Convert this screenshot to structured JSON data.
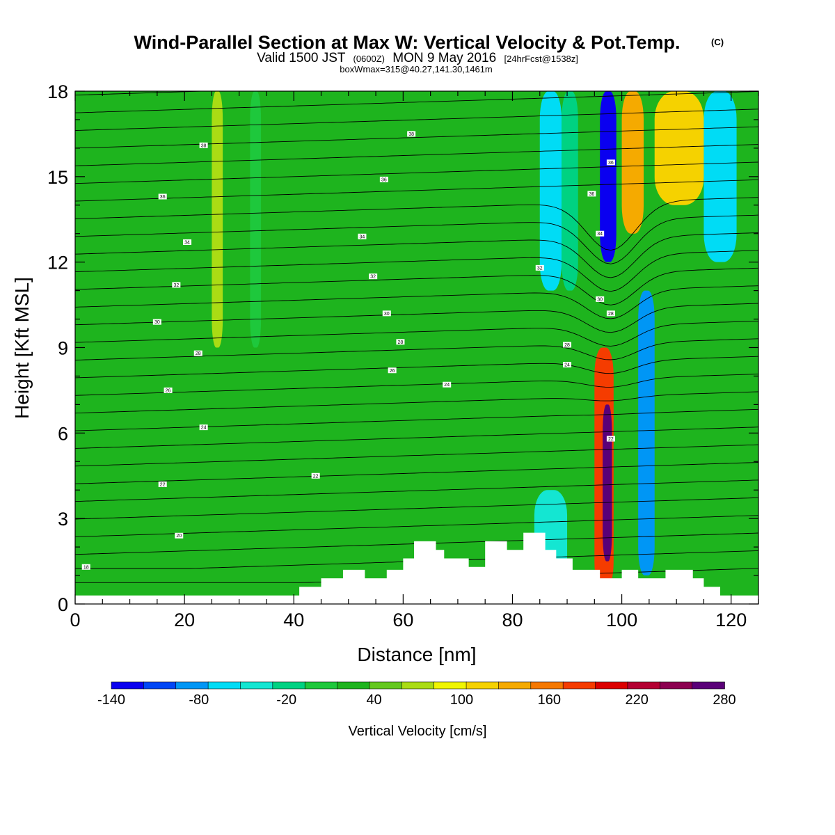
{
  "title": {
    "main": "Wind-Parallel Section at Max W: Vertical Velocity & Pot.Temp.",
    "copyright": "(C)",
    "valid_prefix": "Valid 1500 JST",
    "valid_utc": "(0600Z)",
    "valid_date": "MON 9 May 2016",
    "forecast": "[24hrFcst@1538z]",
    "box_info": "boxWmax=315@40.27,141.30,1461m"
  },
  "chart_data": {
    "type": "heatmap",
    "title": "Wind-Parallel Section at Max W: Vertical Velocity & Pot.Temp.",
    "xlabel": "Distance [nm]",
    "ylabel": "Height [Kft MSL]",
    "xlim": [
      0,
      125
    ],
    "ylim": [
      0,
      18
    ],
    "x_ticks": [
      0,
      20,
      40,
      60,
      80,
      100,
      120
    ],
    "y_ticks": [
      0,
      3,
      6,
      9,
      12,
      15,
      18
    ],
    "colorbar": {
      "label": "Vertical Velocity [cm/s]",
      "min": -140,
      "max": 280,
      "step": 20,
      "tick_labels": [
        "-140",
        "-80",
        "-20",
        "40",
        "100",
        "160",
        "220",
        "280"
      ],
      "colors": [
        "#0a00f0",
        "#0046f5",
        "#0096f5",
        "#00dcf5",
        "#14e6d2",
        "#00d282",
        "#1ec83c",
        "#1eb41e",
        "#64c81e",
        "#aadc14",
        "#f0f500",
        "#f5d200",
        "#f5aa00",
        "#f57800",
        "#f53c00",
        "#dc0000",
        "#b40032",
        "#8c0050",
        "#5a0078"
      ]
    },
    "vertical_velocity_bands": [
      {
        "x_start": 0,
        "x_end": 25,
        "h_bottom": 0.3,
        "h_top": 18,
        "value": 5
      },
      {
        "x_start": 25,
        "x_end": 27,
        "h_bottom": 9,
        "h_top": 18,
        "value": 40
      },
      {
        "x_start": 32,
        "x_end": 34,
        "h_bottom": 9,
        "h_top": 18,
        "value": -10
      },
      {
        "x_start": 84,
        "x_end": 90,
        "h_bottom": 0.5,
        "h_top": 4,
        "value": -45
      },
      {
        "x_start": 85,
        "x_end": 89,
        "h_bottom": 11,
        "h_top": 18,
        "value": -65
      },
      {
        "x_start": 89,
        "x_end": 92,
        "h_bottom": 11,
        "h_top": 18,
        "value": -30
      },
      {
        "x_start": 95,
        "x_end": 98.5,
        "h_bottom": 0.5,
        "h_top": 9,
        "value": 150
      },
      {
        "x_start": 96.5,
        "x_end": 98.2,
        "h_bottom": 1.5,
        "h_top": 7,
        "value": 275
      },
      {
        "x_start": 96,
        "x_end": 99,
        "h_bottom": 12,
        "h_top": 18,
        "value": -130
      },
      {
        "x_start": 100,
        "x_end": 104,
        "h_bottom": 13,
        "h_top": 18,
        "value": 110
      },
      {
        "x_start": 103,
        "x_end": 106,
        "h_bottom": 1,
        "h_top": 11,
        "value": -90
      },
      {
        "x_start": 106,
        "x_end": 115,
        "h_bottom": 14,
        "h_top": 18,
        "value": 80
      },
      {
        "x_start": 115,
        "x_end": 121,
        "h_bottom": 12,
        "h_top": 18,
        "value": -75
      }
    ],
    "terrain_steps": [
      [
        0,
        0.3
      ],
      [
        41,
        0.6
      ],
      [
        45,
        0.9
      ],
      [
        49,
        1.2
      ],
      [
        53,
        0.9
      ],
      [
        57,
        1.2
      ],
      [
        60,
        1.6
      ],
      [
        62,
        2.2
      ],
      [
        66,
        1.9
      ],
      [
        67.5,
        1.6
      ],
      [
        72,
        1.3
      ],
      [
        75,
        2.2
      ],
      [
        79,
        1.9
      ],
      [
        82,
        2.5
      ],
      [
        86,
        1.9
      ],
      [
        88,
        1.6
      ],
      [
        91,
        1.2
      ],
      [
        96,
        0.9
      ],
      [
        100,
        1.2
      ],
      [
        103,
        0.9
      ],
      [
        108,
        1.2
      ],
      [
        113,
        0.9
      ],
      [
        115,
        0.6
      ],
      [
        118,
        0.3
      ],
      [
        125,
        0.3
      ]
    ],
    "contour_labels": [
      {
        "x": 23.5,
        "h": 16.1,
        "text": "38"
      },
      {
        "x": 61.5,
        "h": 16.5,
        "text": "38"
      },
      {
        "x": 16,
        "h": 14.3,
        "text": "36"
      },
      {
        "x": 56.5,
        "h": 14.9,
        "text": "36"
      },
      {
        "x": 94.5,
        "h": 14.4,
        "text": "36"
      },
      {
        "x": 98,
        "h": 15.5,
        "text": "36"
      },
      {
        "x": 20.5,
        "h": 12.7,
        "text": "34"
      },
      {
        "x": 52.5,
        "h": 12.9,
        "text": "34"
      },
      {
        "x": 96,
        "h": 13.0,
        "text": "34"
      },
      {
        "x": 18.5,
        "h": 11.2,
        "text": "32"
      },
      {
        "x": 54.5,
        "h": 11.5,
        "text": "32"
      },
      {
        "x": 85,
        "h": 11.8,
        "text": "32"
      },
      {
        "x": 15,
        "h": 9.9,
        "text": "30"
      },
      {
        "x": 57,
        "h": 10.2,
        "text": "30"
      },
      {
        "x": 96,
        "h": 10.7,
        "text": "30"
      },
      {
        "x": 98,
        "h": 10.2,
        "text": "28"
      },
      {
        "x": 22.5,
        "h": 8.8,
        "text": "28"
      },
      {
        "x": 59.5,
        "h": 9.2,
        "text": "28"
      },
      {
        "x": 90,
        "h": 9.1,
        "text": "28"
      },
      {
        "x": 58,
        "h": 8.2,
        "text": "26"
      },
      {
        "x": 17,
        "h": 7.5,
        "text": "26"
      },
      {
        "x": 68,
        "h": 7.7,
        "text": "24"
      },
      {
        "x": 90,
        "h": 8.4,
        "text": "24"
      },
      {
        "x": 23.5,
        "h": 6.2,
        "text": "24"
      },
      {
        "x": 98,
        "h": 5.8,
        "text": "22"
      },
      {
        "x": 16,
        "h": 4.2,
        "text": "22"
      },
      {
        "x": 44,
        "h": 4.5,
        "text": "22"
      },
      {
        "x": 19,
        "h": 2.4,
        "text": "20"
      },
      {
        "x": 2,
        "h": 1.3,
        "text": "18"
      }
    ]
  }
}
